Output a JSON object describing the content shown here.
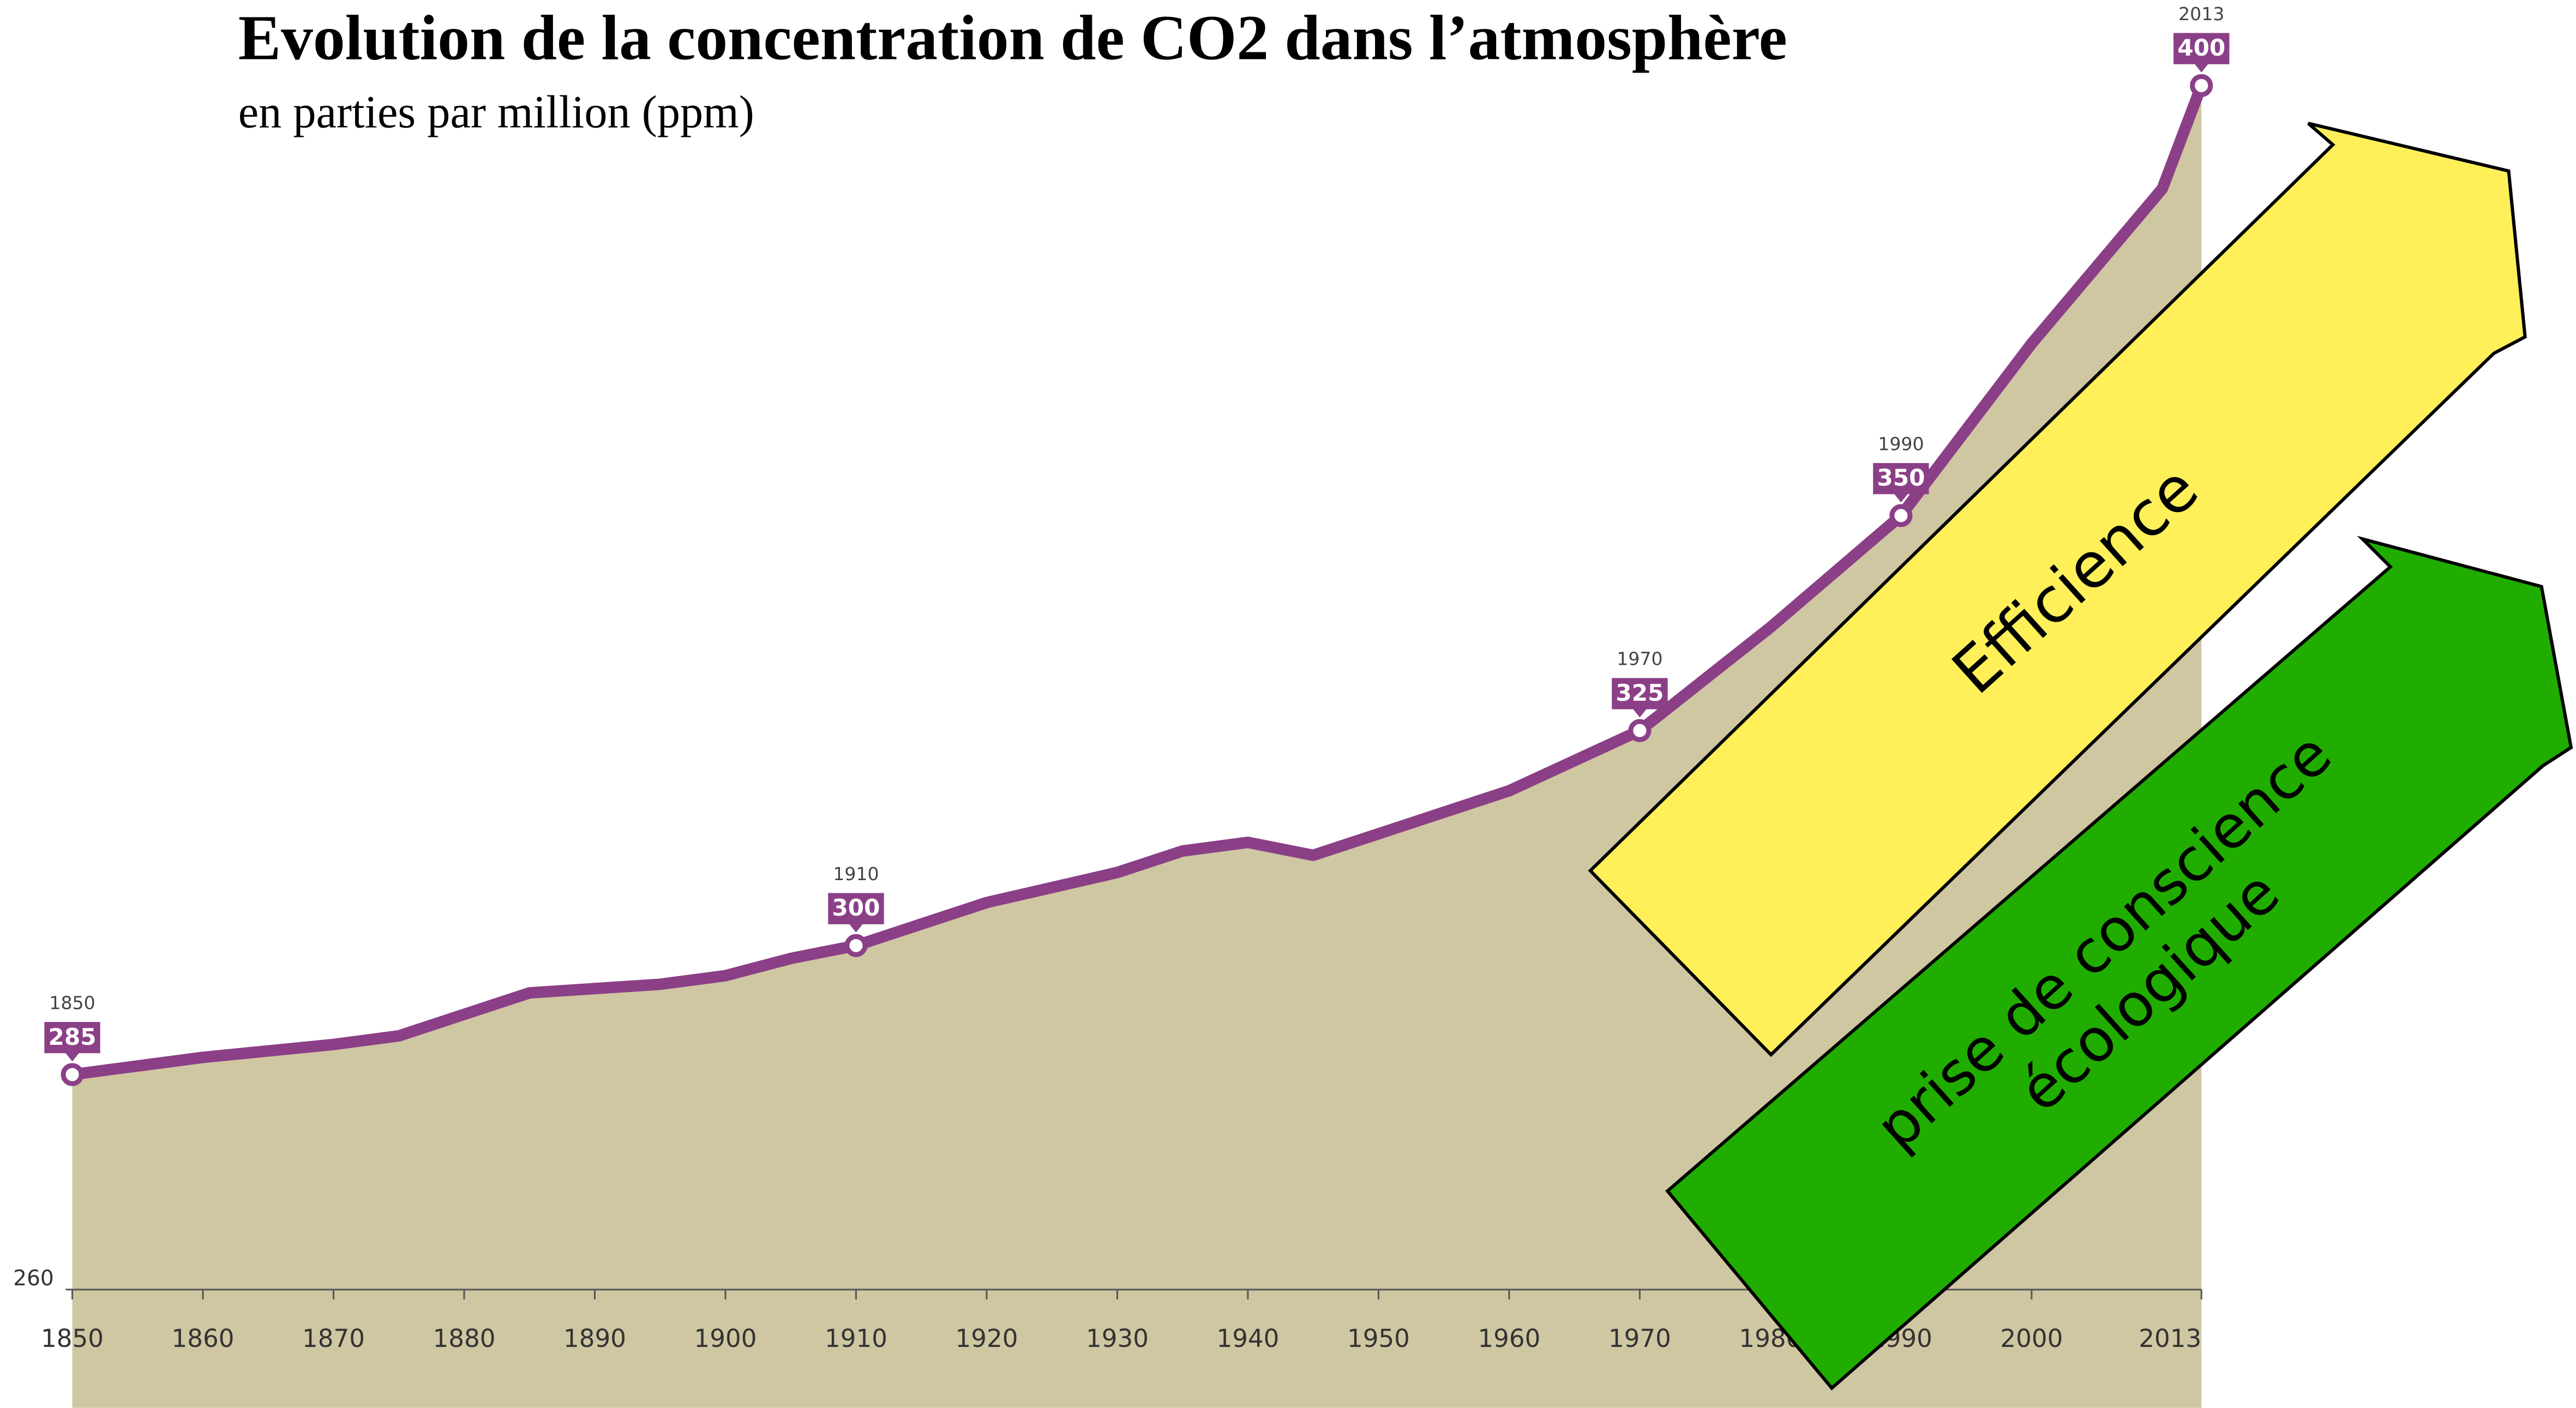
{
  "chart_data": {
    "type": "area",
    "title": "Evolution de la concentration de CO2 dans l’atmosphère",
    "subtitle": "en parties par million (ppm)",
    "x": [
      1850,
      1860,
      1870,
      1875,
      1880,
      1885,
      1890,
      1895,
      1900,
      1905,
      1910,
      1920,
      1930,
      1935,
      1940,
      1945,
      1950,
      1960,
      1970,
      1980,
      1990,
      2000,
      2010,
      2013
    ],
    "values": [
      285,
      287,
      288.5,
      289.5,
      292,
      294.5,
      295,
      295.5,
      296.5,
      298.5,
      300,
      305,
      308.5,
      311,
      312,
      310.5,
      313,
      318,
      325,
      337,
      350,
      370,
      388,
      400
    ],
    "color": "#8b3f87",
    "fill": "#cfc6a2",
    "xlim": [
      1850,
      2013
    ],
    "xticks": [
      1850,
      1860,
      1870,
      1880,
      1890,
      1900,
      1910,
      1920,
      1930,
      1940,
      1950,
      1960,
      1970,
      1980,
      1990,
      2000,
      2013
    ],
    "ylim": [
      260,
      400
    ],
    "yticks": [
      260
    ],
    "annotations": [
      {
        "x": 1850,
        "y": 285
      },
      {
        "x": 1910,
        "y": 300
      },
      {
        "x": 1970,
        "y": 325
      },
      {
        "x": 1990,
        "y": 350
      },
      {
        "x": 2013,
        "y": 400
      }
    ],
    "arrows": [
      {
        "label": [
          "Efficience"
        ],
        "color": "#fff05a"
      },
      {
        "label": [
          "prise de conscience",
          "écologique"
        ],
        "color": "#20ad00"
      }
    ]
  }
}
